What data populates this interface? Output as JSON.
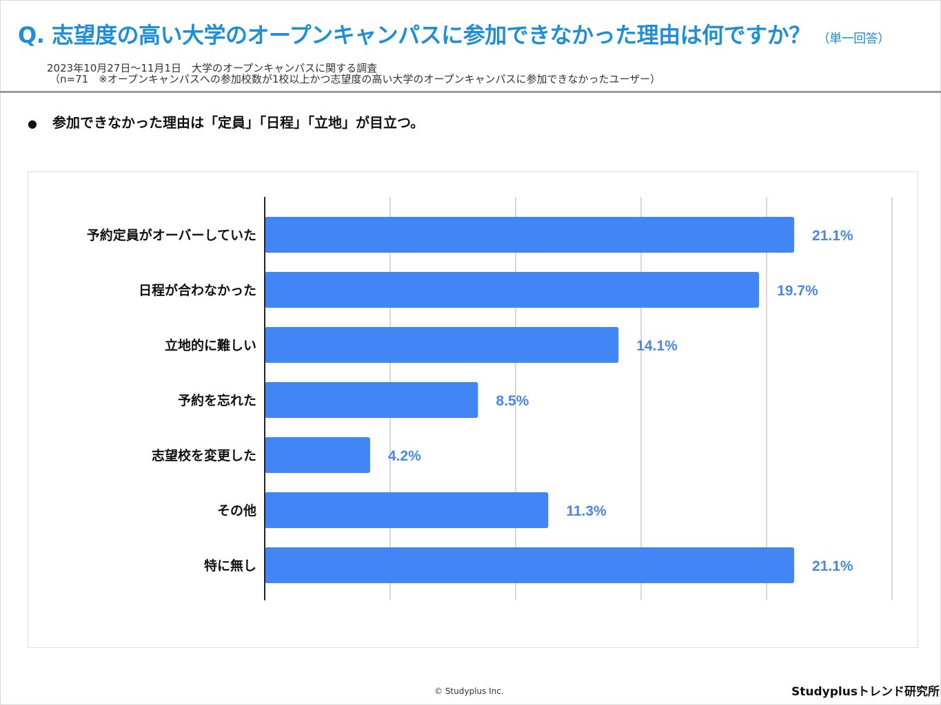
{
  "header": {
    "title": "Q. 志望度の高い大学のオープンキャンパスに参加できなかった理由は何ですか？",
    "answer_type": "（単一回答）",
    "survey_line": "2023年10月27日～11月1日　大学のオープンキャンパスに関する調査",
    "sample_line": "（n=71　※オープンキャンパスへの参加校数が1校以上かつ志望度の高い大学のオープンキャンパスに参加できなかったユーザー）"
  },
  "summary": {
    "bullet": "●",
    "text": "参加できなかった理由は「定員」「日程」「立地」が目立つ。"
  },
  "chart_data": {
    "type": "bar",
    "orientation": "horizontal",
    "categories": [
      "予約定員がオーバーしていた",
      "日程が合わなかった",
      "立地的に難しい",
      "予約を忘れた",
      "志望校を変更した",
      "その他",
      "特に無し"
    ],
    "values": [
      21.1,
      19.7,
      14.1,
      8.5,
      4.2,
      11.3,
      21.1
    ],
    "value_labels": [
      "21.1%",
      "19.7%",
      "14.1%",
      "8.5%",
      "4.2%",
      "11.3%",
      "21.1%"
    ],
    "xlim": [
      0,
      25
    ],
    "gridlines": [
      5,
      10,
      15,
      20,
      25
    ],
    "title": "",
    "xlabel": "",
    "ylabel": "",
    "bar_color": "#4285f4",
    "label_color": "#4a86e8"
  },
  "footer": {
    "copyright": "© Studyplus Inc.",
    "brand": "Studyplusトレンド研究所"
  }
}
